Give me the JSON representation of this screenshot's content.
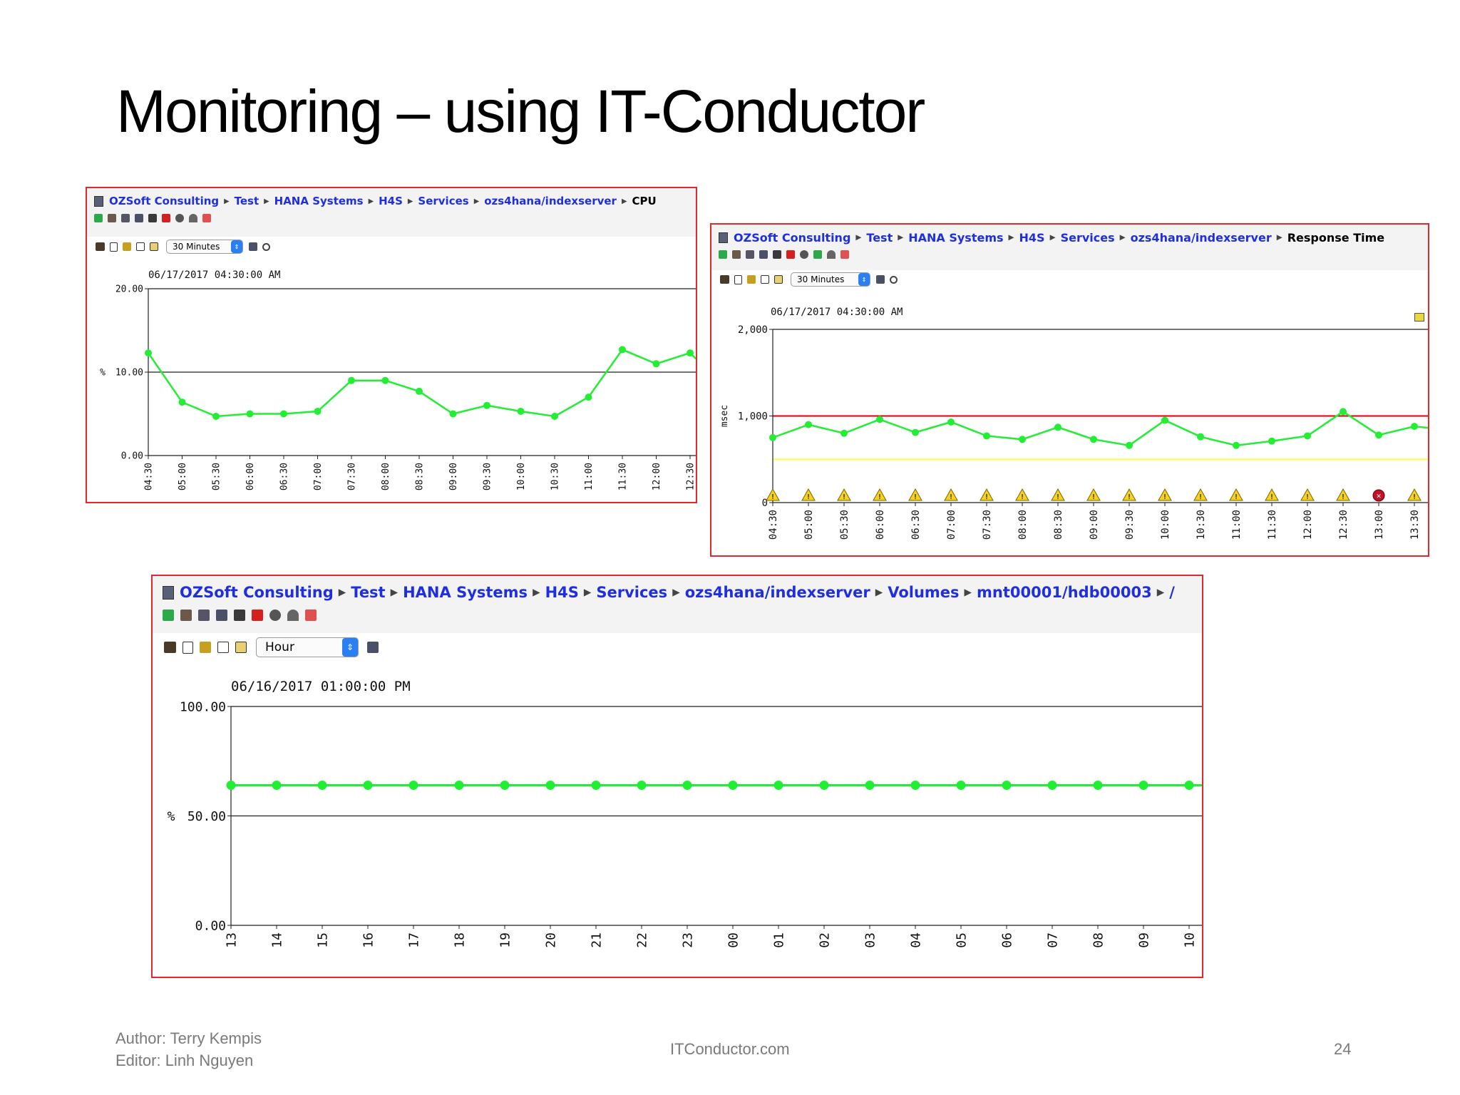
{
  "slide": {
    "title": "Monitoring – using IT-Conductor",
    "footer_author": "Author: Terry Kempis",
    "footer_editor": "Editor: Linh Nguyen",
    "footer_site": "ITConductor.com",
    "page_number": "24"
  },
  "colors": {
    "panel_border": "#e0282e",
    "link": "#1f2fe0",
    "series": "#22ee33",
    "threshold_red": "#dd0000",
    "threshold_yellow": "#ffff40"
  },
  "panels": {
    "cpu": {
      "breadcrumb": [
        "OZSoft Consulting",
        "Test",
        "HANA Systems",
        "H4S",
        "Services",
        "ozs4hana/indexserver"
      ],
      "current": "CPU",
      "period": "30 Minutes",
      "timestamp": "06/17/2017 04:30:00 AM",
      "y_unit": "%"
    },
    "response": {
      "breadcrumb": [
        "OZSoft Consulting",
        "Test",
        "HANA Systems",
        "H4S",
        "Services",
        "ozs4hana/indexserver"
      ],
      "current": "Response Time",
      "period": "30 Minutes",
      "timestamp": "06/17/2017 04:30:00 AM",
      "y_unit": "msec"
    },
    "volume": {
      "breadcrumb": [
        "OZSoft Consulting",
        "Test",
        "HANA Systems",
        "H4S",
        "Services",
        "ozs4hana/indexserver",
        "Volumes",
        "mnt00001/hdb00003"
      ],
      "current": "/",
      "period": "Hour",
      "timestamp": "06/16/2017 01:00:00 PM",
      "y_unit": "%"
    }
  },
  "chart_data": [
    {
      "type": "line",
      "ylabel": "%",
      "ylim": [
        0,
        20
      ],
      "yticks": [
        "20.00",
        "10.00",
        "0.00"
      ],
      "grid": "horizontal",
      "x": [
        "04:30",
        "05:00",
        "05:30",
        "06:00",
        "06:30",
        "07:00",
        "07:30",
        "08:00",
        "08:30",
        "09:00",
        "09:30",
        "10:00",
        "10:30",
        "11:00",
        "11:30",
        "12:00",
        "12:30"
      ],
      "values": [
        12.3,
        6.4,
        4.7,
        5.0,
        5.0,
        5.3,
        9.0,
        9.0,
        7.7,
        5.0,
        6.0,
        5.3,
        4.7,
        7.0,
        12.7,
        11.0,
        12.3
      ]
    },
    {
      "type": "line",
      "ylabel": "msec",
      "ylim": [
        0,
        2000
      ],
      "yticks": [
        "2,000",
        "1,000",
        "0"
      ],
      "thresholds": [
        1000,
        500
      ],
      "x": [
        "04:30",
        "05:00",
        "05:30",
        "06:00",
        "06:30",
        "07:00",
        "07:30",
        "08:00",
        "08:30",
        "09:00",
        "09:30",
        "10:00",
        "10:30",
        "11:00",
        "11:30",
        "12:00",
        "12:30",
        "13:00",
        "13:30"
      ],
      "values": [
        750,
        900,
        800,
        960,
        810,
        930,
        770,
        730,
        870,
        730,
        660,
        950,
        760,
        660,
        710,
        770,
        1050,
        780,
        880
      ],
      "alerts": [
        "warning",
        "warning",
        "warning",
        "warning",
        "warning",
        "warning",
        "warning",
        "warning",
        "warning",
        "warning",
        "warning",
        "warning",
        "warning",
        "warning",
        "warning",
        "warning",
        "warning",
        "error",
        "warning"
      ]
    },
    {
      "type": "line",
      "ylabel": "%",
      "ylim": [
        0,
        100
      ],
      "yticks": [
        "100.00",
        "50.00",
        "0.00"
      ],
      "grid": "horizontal",
      "x": [
        "13",
        "14",
        "15",
        "16",
        "17",
        "18",
        "19",
        "20",
        "21",
        "22",
        "23",
        "00",
        "01",
        "02",
        "03",
        "04",
        "05",
        "06",
        "07",
        "08",
        "09",
        "10"
      ],
      "values": [
        64,
        64,
        64,
        64,
        64,
        64,
        64,
        64,
        64,
        64,
        64,
        64,
        64,
        64,
        64,
        64,
        64,
        64,
        64,
        64,
        64,
        64
      ]
    }
  ]
}
